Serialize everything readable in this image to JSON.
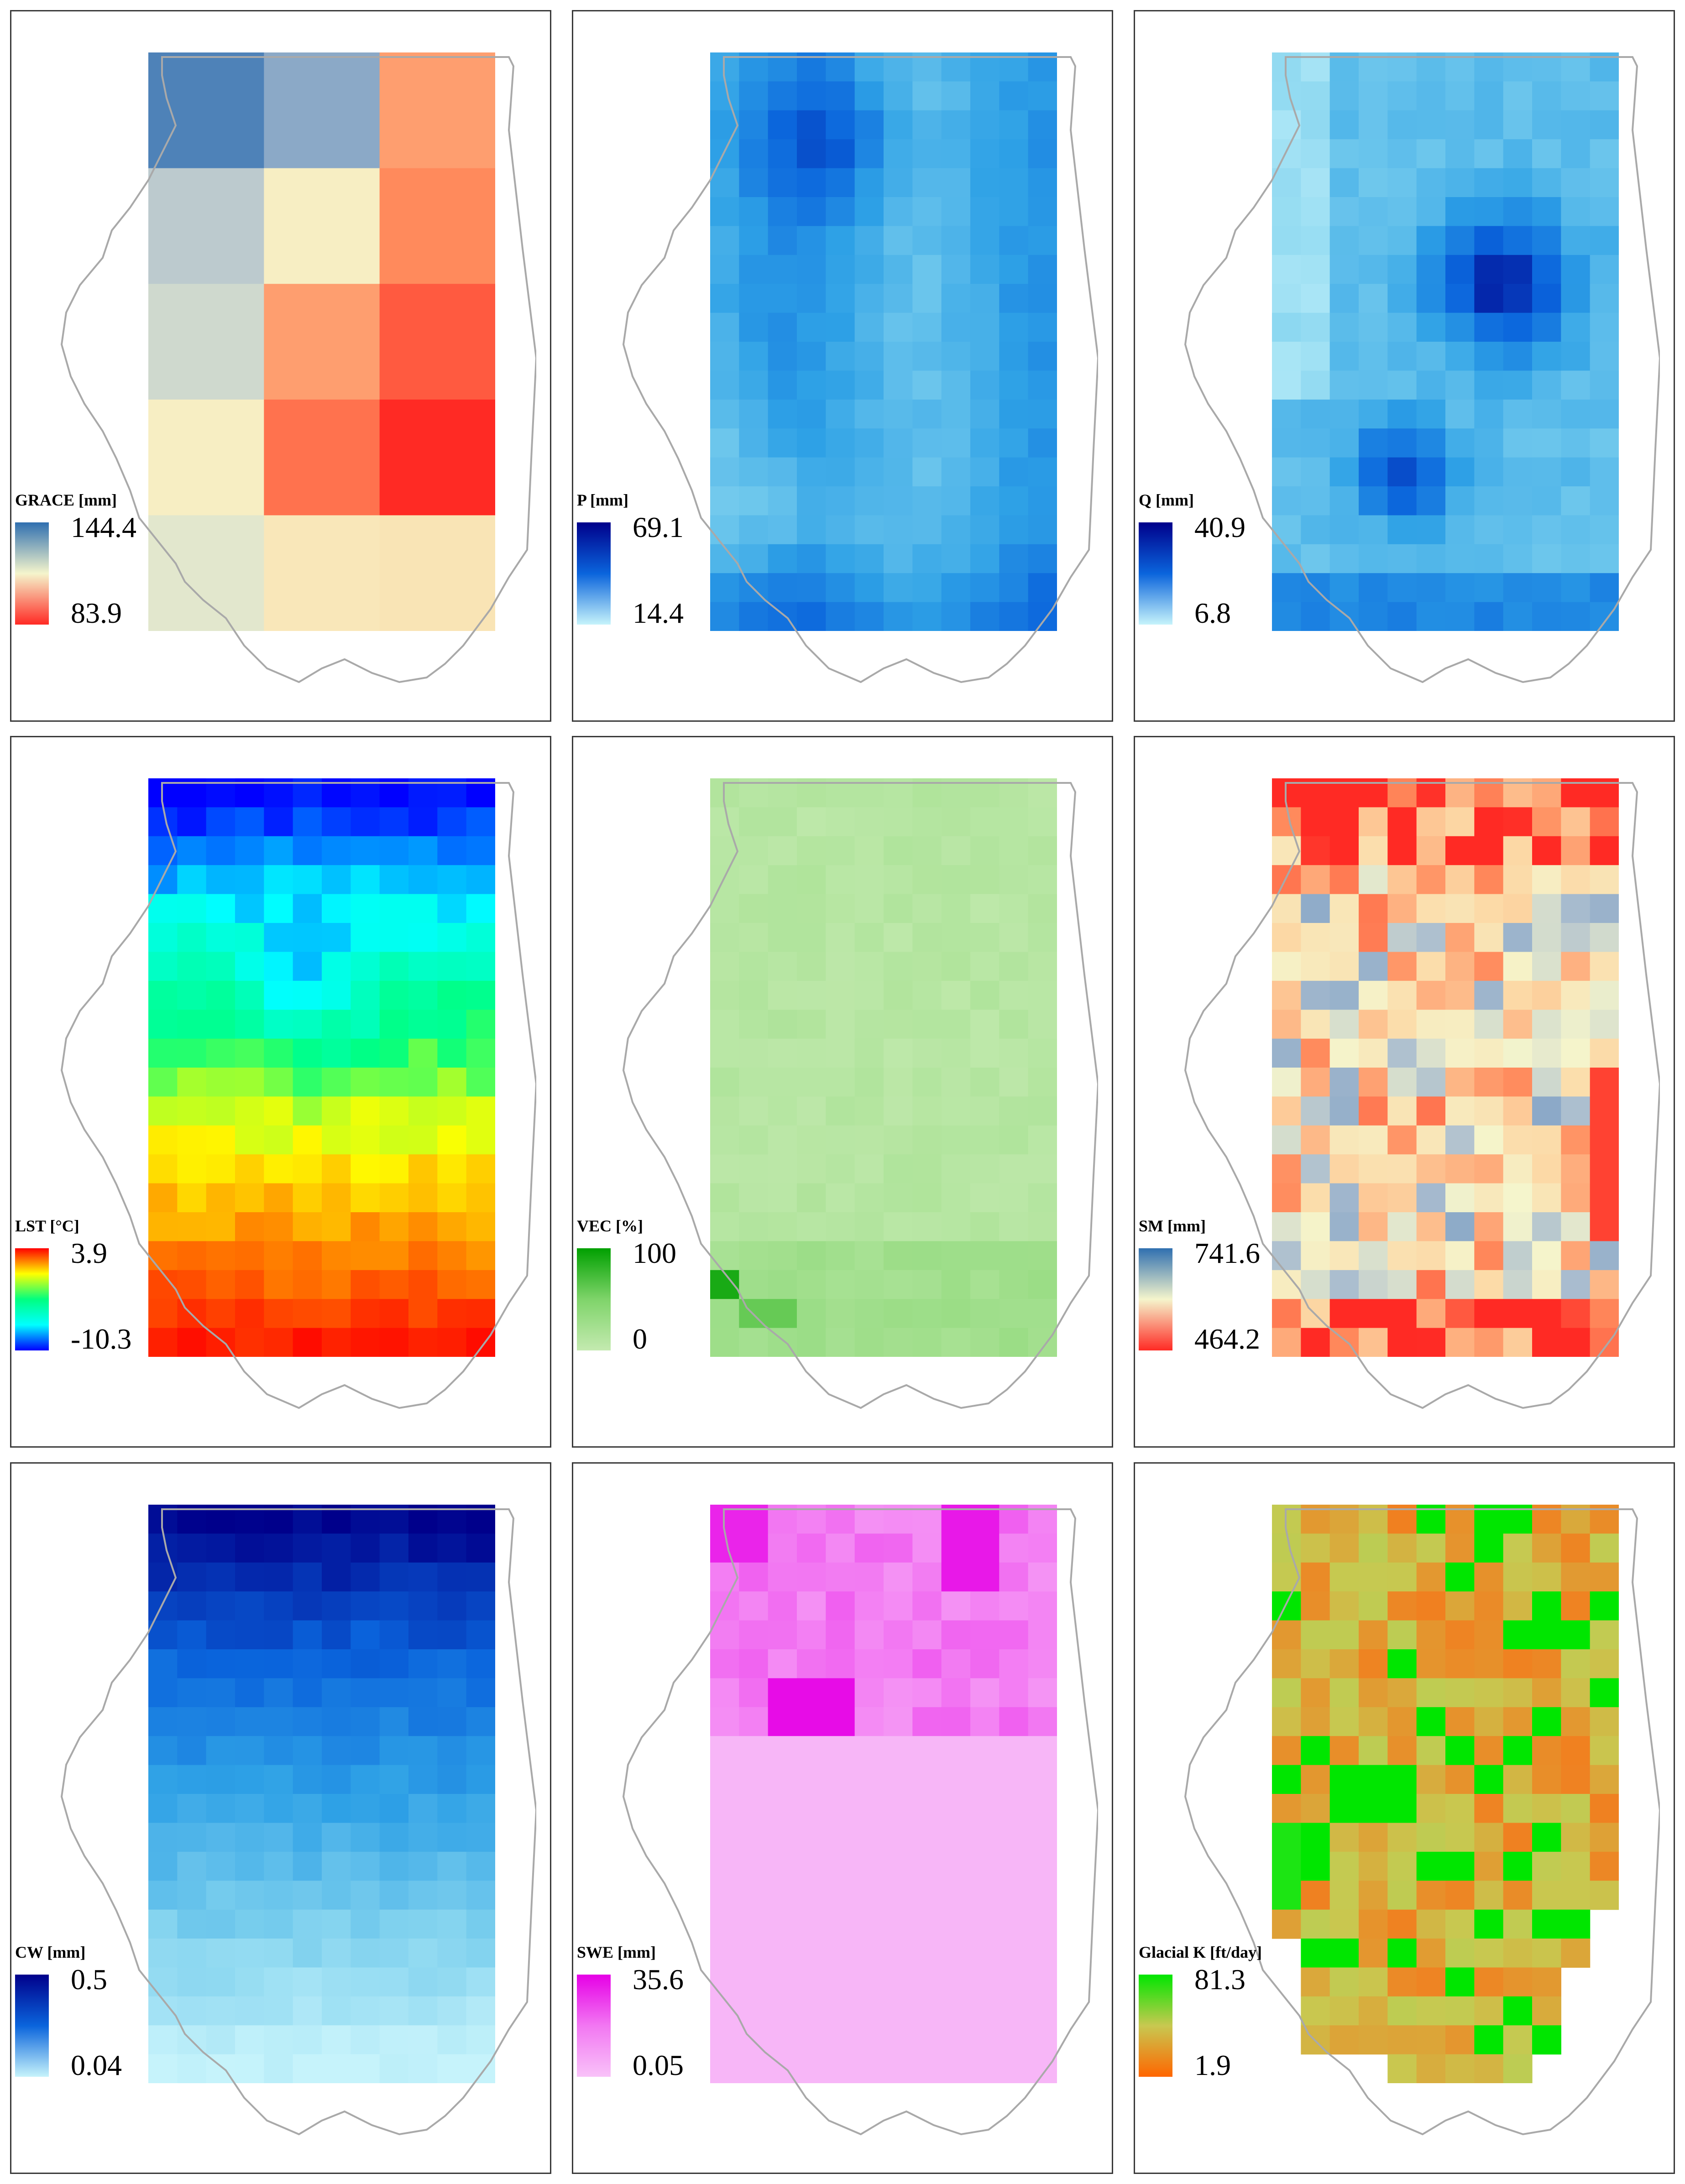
{
  "panels": [
    {
      "id": "grace",
      "title": "GRACE [mm]",
      "max": "144.4",
      "min": "83.9",
      "cols": 3,
      "rows": 5,
      "colors": {
        "max": "#2f6fb0",
        "mid": "#f5f5cc",
        "min": "#ff2a24"
      },
      "cmap": "rdbu",
      "pattern": "grace"
    },
    {
      "id": "p",
      "title": "P [mm]",
      "max": "69.1",
      "min": "14.4",
      "cols": 12,
      "rows": 20,
      "colors": {
        "max": "#00008b",
        "min": "#c6f3fb"
      },
      "cmap": "blues",
      "pattern": "p"
    },
    {
      "id": "q",
      "title": "Q [mm]",
      "max": "40.9",
      "min": "6.8",
      "cols": 12,
      "rows": 20,
      "colors": {
        "max": "#00008b",
        "min": "#c6f3fb"
      },
      "cmap": "blues",
      "pattern": "q"
    },
    {
      "id": "lst",
      "title": "LST [°C]",
      "max": "3.9",
      "min": "-10.3",
      "cols": 12,
      "rows": 20,
      "colors": {
        "max": "#ff0000",
        "min": "#0000ff"
      },
      "cmap": "jet",
      "pattern": "lst"
    },
    {
      "id": "vec",
      "title": "VEC [%]",
      "max": "100",
      "min": "0",
      "cols": 12,
      "rows": 20,
      "colors": {
        "max": "#00a000",
        "min": "#c4eab0"
      },
      "cmap": "greens",
      "pattern": "vec"
    },
    {
      "id": "sm",
      "title": "SM [mm]",
      "max": "741.6",
      "min": "464.2",
      "cols": 12,
      "rows": 20,
      "colors": {
        "max": "#2f6fb0",
        "mid": "#f5f5cc",
        "min": "#ff2a24"
      },
      "cmap": "rdbu",
      "pattern": "sm"
    },
    {
      "id": "cw",
      "title": "CW [mm]",
      "max": "0.5",
      "min": "0.04",
      "cols": 12,
      "rows": 20,
      "colors": {
        "max": "#00008b",
        "min": "#c6f3fb"
      },
      "cmap": "blues",
      "pattern": "cw"
    },
    {
      "id": "swe",
      "title": "SWE [mm]",
      "max": "35.6",
      "min": "0.05",
      "cols": 12,
      "rows": 20,
      "colors": {
        "max": "#e600e6",
        "min": "#f8c2f8"
      },
      "cmap": "pinks",
      "pattern": "swe"
    },
    {
      "id": "gk",
      "title": "Glacial K [ft/day]",
      "max": "81.3",
      "min": "1.9",
      "cols": 12,
      "rows": 20,
      "colors": {
        "max": "#00e600",
        "min": "#ff6600"
      },
      "cmap": "gk",
      "pattern": "gk"
    }
  ]
}
